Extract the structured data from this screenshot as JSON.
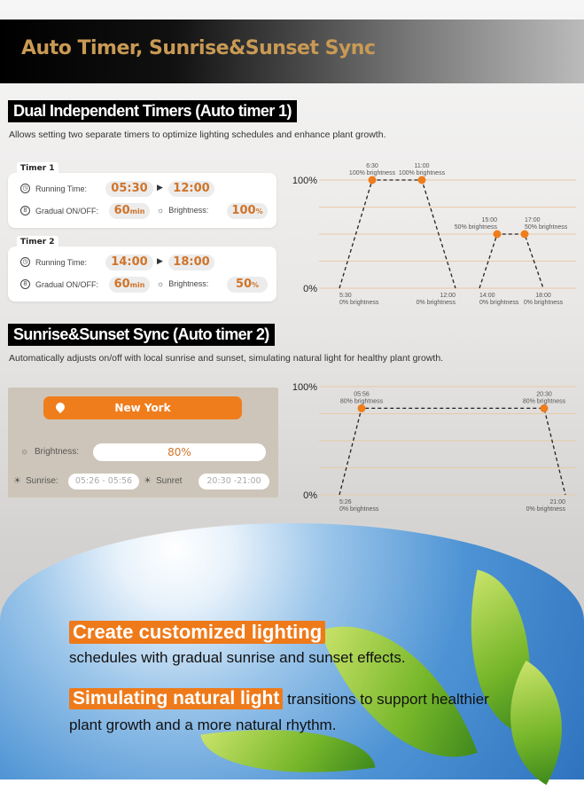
{
  "header": {
    "title": "Auto Timer, Sunrise&Sunset Sync"
  },
  "section1": {
    "title": "Dual Independent Timers (Auto timer 1)",
    "description": "Allows setting two separate timers to optimize lighting schedules and enhance plant growth."
  },
  "timers": [
    {
      "label": "Timer 1",
      "running_label": "Running Time:",
      "start": "05:30",
      "end": "12:00",
      "gradual_label": "Gradual ON/OFF:",
      "gradual": "60",
      "gradual_unit": "min",
      "brightness_label": "Brightness:",
      "brightness": "100",
      "brightness_unit": "%"
    },
    {
      "label": "Timer 2",
      "running_label": "Running Time:",
      "start": "14:00",
      "end": "18:00",
      "gradual_label": "Gradual ON/OFF:",
      "gradual": "60",
      "gradual_unit": "min",
      "brightness_label": "Brightness:",
      "brightness": "50",
      "brightness_unit": "%"
    }
  ],
  "section2": {
    "title": "Sunrise&Sunset Sync (Auto timer 2)",
    "description": "Automatically adjusts on/off with local sunrise and sunset, simulating natural light for healthy plant growth."
  },
  "sunsync": {
    "city": "New York",
    "brightness_label": "Brightness:",
    "brightness": "80%",
    "sunrise_label": "Sunrise:",
    "sunrise": "05:26 - 05:56",
    "sunset_label": "Sunret",
    "sunset": "20:30 -21:00"
  },
  "colors": {
    "accent": "#ef7d1c",
    "title_gold": "#c99a55",
    "gridline": "#e8c9a8"
  },
  "chart_data": [
    {
      "type": "line",
      "ylim": [
        0,
        100
      ],
      "yticks": [
        "0%",
        "100%"
      ],
      "grid": true,
      "points": [
        {
          "x": "5:30",
          "y": 0,
          "label": "0% brightness",
          "marker": false
        },
        {
          "x": "6:30",
          "y": 100,
          "label": "100% brightness",
          "marker": true
        },
        {
          "x": "11:00",
          "y": 100,
          "label": "100% brightness",
          "marker": true
        },
        {
          "x": "12:00",
          "y": 0,
          "label": "0% brightness",
          "marker": false
        },
        {
          "x": "14:00",
          "y": 0,
          "label": "0% brightness",
          "marker": false
        },
        {
          "x": "15:00",
          "y": 50,
          "label": "50% brightness",
          "marker": true
        },
        {
          "x": "17:00",
          "y": 50,
          "label": "50% brightness",
          "marker": true
        },
        {
          "x": "18:00",
          "y": 0,
          "label": "0% brightness",
          "marker": false
        }
      ],
      "segments": [
        [
          0,
          1,
          2,
          3
        ],
        [
          4,
          5,
          6,
          7
        ]
      ]
    },
    {
      "type": "line",
      "ylim": [
        0,
        100
      ],
      "yticks": [
        "0%",
        "100%"
      ],
      "grid": true,
      "points": [
        {
          "x": "5:26",
          "y": 0,
          "label": "0% brightness",
          "marker": false
        },
        {
          "x": "05:56",
          "y": 80,
          "label": "80% brightness",
          "marker": true
        },
        {
          "x": "20:30",
          "y": 80,
          "label": "80% brightness",
          "marker": true
        },
        {
          "x": "21:00",
          "y": 0,
          "label": "0% brightness",
          "marker": false
        }
      ],
      "segments": [
        [
          0,
          1,
          2,
          3
        ]
      ]
    }
  ],
  "bottom": {
    "highlight1": "Create customized lighting",
    "line1": "schedules with gradual sunrise and sunset effects.",
    "highlight2": "Simulating natural light",
    "line2a": " transitions to support healthier",
    "line2b": "plant growth and a more natural rhythm."
  }
}
